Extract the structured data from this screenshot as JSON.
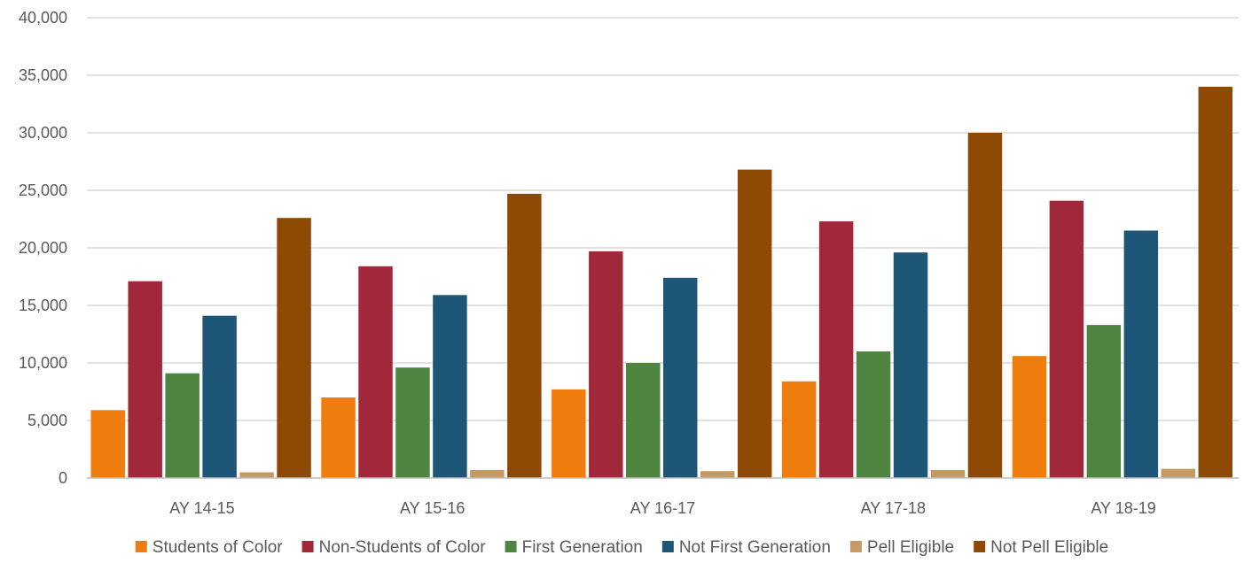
{
  "chart_data": {
    "type": "bar",
    "title": "",
    "xlabel": "",
    "ylabel": "",
    "categories": [
      "AY 14-15",
      "AY 15-16",
      "AY 16-17",
      "AY 17-18",
      "AY 18-19"
    ],
    "ylim": [
      0,
      40000
    ],
    "yticks": [
      0,
      5000,
      10000,
      15000,
      20000,
      25000,
      30000,
      35000,
      40000
    ],
    "ytick_labels": [
      "0",
      "5,000",
      "10,000",
      "15,000",
      "20,000",
      "25,000",
      "30,000",
      "35,000",
      "40,000"
    ],
    "grid": true,
    "legend_position": "bottom",
    "series": [
      {
        "name": "Students of Color",
        "color": "#ef7d0e",
        "values": [
          5900,
          7000,
          7700,
          8400,
          10600
        ]
      },
      {
        "name": "Non-Students of Color",
        "color": "#a0283a",
        "values": [
          17100,
          18400,
          19700,
          22300,
          24100
        ]
      },
      {
        "name": "First Generation",
        "color": "#4e8540",
        "values": [
          9100,
          9600,
          10000,
          11000,
          13300
        ]
      },
      {
        "name": "Not First Generation",
        "color": "#1e5678",
        "values": [
          14100,
          15900,
          17400,
          19600,
          21500
        ]
      },
      {
        "name": "Pell Eligible",
        "color": "#c49a62",
        "values": [
          500,
          700,
          600,
          700,
          800
        ]
      },
      {
        "name": "Not Pell Eligible",
        "color": "#8e4a05",
        "values": [
          22600,
          24700,
          26800,
          30000,
          34000
        ]
      }
    ]
  }
}
